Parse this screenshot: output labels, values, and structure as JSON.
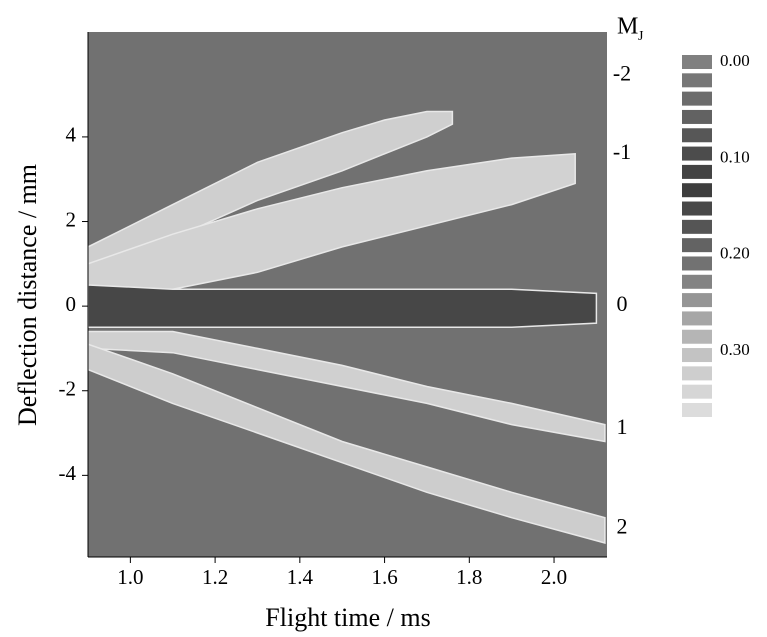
{
  "chart_data": {
    "type": "bands",
    "x_label": "Flight time / ms",
    "y_label": "Deflection distance / mm",
    "background": "#717171",
    "xlim": [
      0.9,
      2.125
    ],
    "ylim": [
      -5.93,
      6.48
    ],
    "xticks": [
      {
        "value": 1,
        "label": "1.0"
      },
      {
        "value": 1.2,
        "label": "1.2"
      },
      {
        "value": 1.4,
        "label": "1.4"
      },
      {
        "value": 1.6,
        "label": "1.6"
      },
      {
        "value": 1.8,
        "label": "1.8"
      },
      {
        "value": 2,
        "label": "2.0"
      }
    ],
    "yticks": [
      -4,
      -2,
      0,
      2,
      4
    ],
    "bands": [
      {
        "x": [
          0.9,
          1.1,
          1.3,
          1.5,
          1.6,
          1.7,
          1.76
        ],
        "upper": [
          1.4,
          2.4,
          3.4,
          4.1,
          4.4,
          4.6,
          4.6
        ],
        "lower": [
          0.9,
          1.6,
          2.5,
          3.2,
          3.6,
          4.0,
          4.3
        ],
        "color": "#cfcfcf"
      },
      {
        "x": [
          0.9,
          1.1,
          1.3,
          1.5,
          1.7,
          1.9,
          2.05
        ],
        "upper": [
          1.0,
          1.7,
          2.3,
          2.8,
          3.2,
          3.5,
          3.6
        ],
        "lower": [
          0.4,
          0.4,
          0.8,
          1.4,
          1.9,
          2.4,
          2.9
        ],
        "color": "#d2d2d2"
      },
      {
        "x": [
          0.9,
          1.1,
          1.3,
          1.5,
          1.7,
          1.9,
          2.1
        ],
        "upper": [
          0.5,
          0.4,
          0.4,
          0.4,
          0.4,
          0.4,
          0.3
        ],
        "lower": [
          -0.5,
          -0.5,
          -0.5,
          -0.5,
          -0.5,
          -0.5,
          -0.4
        ],
        "color": "#474747"
      },
      {
        "x": [
          0.9,
          1.1,
          1.3,
          1.5,
          1.7,
          1.9,
          2.12
        ],
        "upper": [
          -0.6,
          -0.6,
          -1.0,
          -1.4,
          -1.9,
          -2.3,
          -2.8
        ],
        "lower": [
          -1.0,
          -1.1,
          -1.5,
          -1.9,
          -2.3,
          -2.8,
          -3.2
        ],
        "color": "#d0d0d0"
      },
      {
        "x": [
          0.9,
          1.1,
          1.3,
          1.5,
          1.7,
          1.9,
          2.12
        ],
        "upper": [
          -0.9,
          -1.6,
          -2.4,
          -3.2,
          -3.8,
          -4.4,
          -5.0
        ],
        "lower": [
          -1.5,
          -2.3,
          -3.0,
          -3.7,
          -4.4,
          -5.0,
          -5.6
        ],
        "color": "#cdcdcd"
      }
    ],
    "mj_title": {
      "main": "M",
      "sub": "J"
    },
    "mj_labels": [
      "-2",
      "-1",
      "0",
      "1",
      "2"
    ],
    "mj_positions": [
      5.45,
      3.6,
      0,
      -2.9,
      -5.25
    ],
    "colorbar": {
      "lim": [
        0,
        0.361
      ],
      "levels": [
        0,
        0.019,
        0.038,
        0.057,
        0.076,
        0.095,
        0.114,
        0.133,
        0.152,
        0.171,
        0.19,
        0.209,
        0.228,
        0.247,
        0.266,
        0.285,
        0.304,
        0.323,
        0.342,
        0.361
      ],
      "colors": [
        "#808080",
        "#777777",
        "#6c6c6c",
        "#626262",
        "#575757",
        "#4c4c4c",
        "#434343",
        "#3e3e3e",
        "#484848",
        "#555555",
        "#636363",
        "#727272",
        "#838383",
        "#959595",
        "#a6a6a6",
        "#b5b5b5",
        "#c3c3c3",
        "#cecece",
        "#d6d6d6",
        "#dcdcdc"
      ],
      "ticks": [
        {
          "value": 0,
          "label": "0.00"
        },
        {
          "value": 0.1,
          "label": "0.10"
        },
        {
          "value": 0.2,
          "label": "0.20"
        },
        {
          "value": 0.3,
          "label": "0.30"
        }
      ]
    }
  }
}
